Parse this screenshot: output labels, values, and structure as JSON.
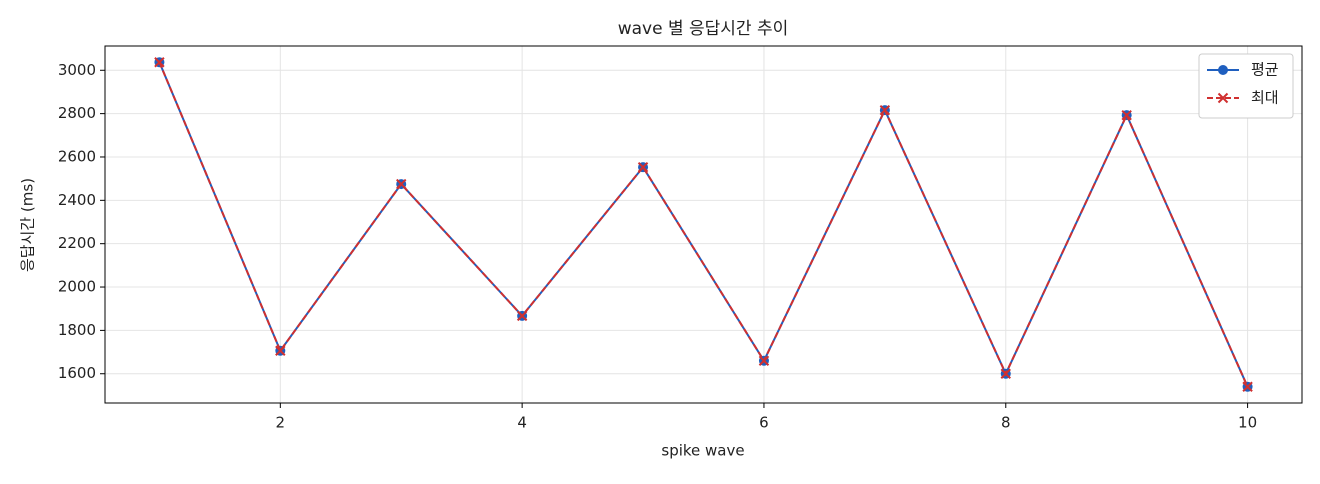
{
  "chart_data": {
    "type": "line",
    "title": "wave 별 응답시간 추이",
    "x_label": "spike wave",
    "y_label": "응답시간 (ms)",
    "x": [
      1,
      2,
      3,
      4,
      5,
      6,
      7,
      8,
      9,
      10
    ],
    "series": [
      {
        "name": "평균",
        "color": "#1f5fbf",
        "marker": "o",
        "linestyle": "solid",
        "values": [
          3037,
          1706,
          2475,
          1867,
          2553,
          1660,
          2816,
          1600,
          2793,
          1540
        ]
      },
      {
        "name": "최대",
        "color": "#d03030",
        "marker": "x",
        "linestyle": "dashed",
        "values": [
          3037,
          1706,
          2475,
          1867,
          2553,
          1660,
          2816,
          1600,
          2793,
          1540
        ]
      }
    ],
    "xlim": [
      0.55,
      10.45
    ],
    "xticks": [
      2,
      4,
      6,
      8,
      10
    ],
    "ylim": [
      1465,
      3112
    ],
    "yticks": [
      1600,
      1800,
      2000,
      2200,
      2400,
      2600,
      2800,
      3000
    ],
    "grid": true,
    "legend": "upper right"
  }
}
